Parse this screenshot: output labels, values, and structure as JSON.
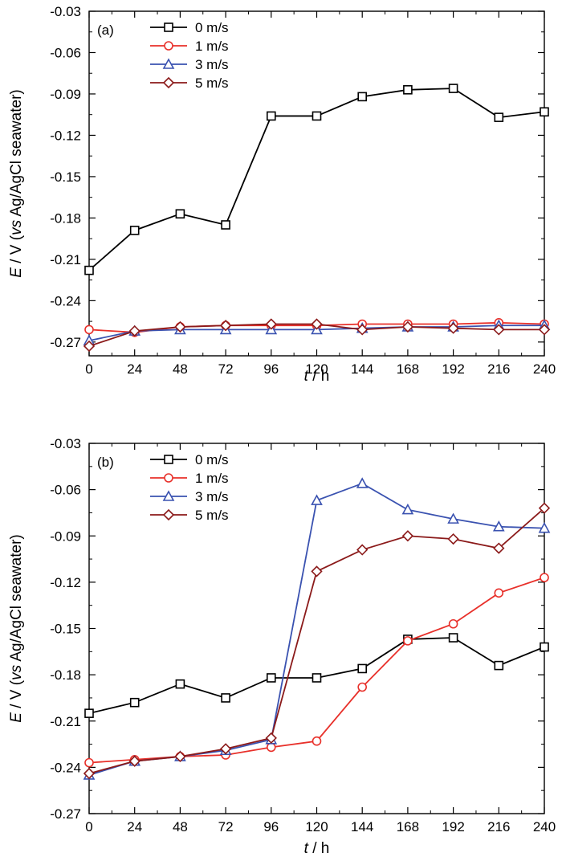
{
  "chart_data": [
    {
      "type": "line",
      "panel_label": "(a)",
      "xlabel_italic": "t",
      "xlabel_rest": " / h",
      "ylabel_italic_e": "E",
      "ylabel_mid": " / V (",
      "ylabel_italic_vs": "vs",
      "ylabel_end": " Ag/AgCl seawater)",
      "x": [
        0,
        24,
        48,
        72,
        96,
        120,
        144,
        168,
        192,
        216,
        240
      ],
      "xticks": [
        "0",
        "24",
        "48",
        "72",
        "96",
        "120",
        "144",
        "168",
        "192",
        "216",
        "240"
      ],
      "yticks": [
        "-0.03",
        "-0.06",
        "-0.09",
        "-0.12",
        "-0.15",
        "-0.18",
        "-0.21",
        "-0.24",
        "-0.27"
      ],
      "xlim": [
        0,
        240
      ],
      "ylim": [
        -0.28,
        -0.03
      ],
      "legend_position": "top-left",
      "series": [
        {
          "name": "0 m/s",
          "color": "#000000",
          "marker": "square",
          "values": [
            -0.218,
            -0.189,
            -0.177,
            -0.185,
            -0.106,
            -0.106,
            -0.092,
            -0.087,
            -0.086,
            -0.107,
            -0.103
          ]
        },
        {
          "name": "1 m/s",
          "color": "#e8302a",
          "marker": "circle",
          "values": [
            -0.261,
            -0.263,
            -0.259,
            -0.258,
            -0.258,
            -0.258,
            -0.257,
            -0.257,
            -0.257,
            -0.256,
            -0.257
          ]
        },
        {
          "name": "3 m/s",
          "color": "#3a52b0",
          "marker": "triangle",
          "values": [
            -0.269,
            -0.262,
            -0.261,
            -0.261,
            -0.261,
            -0.261,
            -0.26,
            -0.259,
            -0.259,
            -0.258,
            -0.258
          ]
        },
        {
          "name": "5 m/s",
          "color": "#8b1a1a",
          "marker": "diamond",
          "values": [
            -0.273,
            -0.262,
            -0.259,
            -0.258,
            -0.257,
            -0.257,
            -0.261,
            -0.259,
            -0.26,
            -0.261,
            -0.261
          ]
        }
      ]
    },
    {
      "type": "line",
      "panel_label": "(b)",
      "xlabel_italic": "t",
      "xlabel_rest": " / h",
      "ylabel_italic_e": "E",
      "ylabel_mid": " / V (",
      "ylabel_italic_vs": "vs",
      "ylabel_end": " Ag/AgCl seawater)",
      "x": [
        0,
        24,
        48,
        72,
        96,
        120,
        144,
        168,
        192,
        216,
        240
      ],
      "xticks": [
        "0",
        "24",
        "48",
        "72",
        "96",
        "120",
        "144",
        "168",
        "192",
        "216",
        "240"
      ],
      "yticks": [
        "-0.03",
        "-0.06",
        "-0.09",
        "-0.12",
        "-0.15",
        "-0.18",
        "-0.21",
        "-0.24",
        "-0.27"
      ],
      "xlim": [
        0,
        240
      ],
      "ylim": [
        -0.27,
        -0.03
      ],
      "legend_position": "top-left",
      "series": [
        {
          "name": "0 m/s",
          "color": "#000000",
          "marker": "square",
          "values": [
            -0.205,
            -0.198,
            -0.186,
            -0.195,
            -0.182,
            -0.182,
            -0.176,
            -0.157,
            -0.156,
            -0.174,
            -0.162
          ]
        },
        {
          "name": "1 m/s",
          "color": "#e8302a",
          "marker": "circle",
          "values": [
            -0.237,
            -0.235,
            -0.233,
            -0.232,
            -0.227,
            -0.223,
            -0.188,
            -0.158,
            -0.147,
            -0.127,
            -0.117
          ]
        },
        {
          "name": "3 m/s",
          "color": "#3a52b0",
          "marker": "triangle",
          "values": [
            -0.245,
            -0.236,
            -0.233,
            -0.229,
            -0.222,
            -0.067,
            -0.056,
            -0.073,
            -0.079,
            -0.084,
            -0.085
          ]
        },
        {
          "name": "5 m/s",
          "color": "#8b1a1a",
          "marker": "diamond",
          "values": [
            -0.244,
            -0.236,
            -0.233,
            -0.228,
            -0.221,
            -0.113,
            -0.099,
            -0.09,
            -0.092,
            -0.098,
            -0.072
          ]
        }
      ]
    }
  ]
}
